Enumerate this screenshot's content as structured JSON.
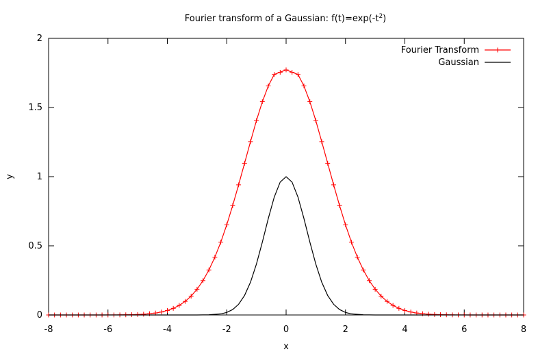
{
  "chart_data": {
    "type": "line",
    "title": "Fourier transform of a Gaussian: f(t)=exp(-t²)",
    "title_base": "Fourier transform of a Gaussian: f(t)=exp(-t",
    "title_sup": "2",
    "title_tail": ")",
    "xlabel": "x",
    "ylabel": "y",
    "xlim": [
      -8,
      8
    ],
    "ylim": [
      0,
      2
    ],
    "xticks": [
      -8,
      -6,
      -4,
      -2,
      0,
      2,
      4,
      6,
      8
    ],
    "xtick_labels": [
      "-8",
      "-6",
      "-4",
      "-2",
      "0",
      "2",
      "4",
      "6",
      "8"
    ],
    "yticks": [
      0,
      0.5,
      1,
      1.5,
      2
    ],
    "ytick_labels": [
      "0",
      "0.5",
      "1",
      "1.5",
      "2"
    ],
    "grid": false,
    "legend_position": "top-right",
    "series": [
      {
        "name": "Fourier Transform",
        "color": "#ff0000",
        "marker": "plus",
        "x": [
          -8.0,
          -7.8,
          -7.6,
          -7.4,
          -7.2,
          -7.0,
          -6.8,
          -6.6,
          -6.4,
          -6.2,
          -6.0,
          -5.8,
          -5.6,
          -5.4,
          -5.2,
          -5.0,
          -4.8,
          -4.6,
          -4.4,
          -4.2,
          -4.0,
          -3.8,
          -3.6,
          -3.4,
          -3.2,
          -3.0,
          -2.8,
          -2.6,
          -2.4,
          -2.2,
          -2.0,
          -1.8,
          -1.6,
          -1.4,
          -1.2,
          -1.0,
          -0.8,
          -0.6,
          -0.4,
          -0.2,
          0.0,
          0.2,
          0.4,
          0.6,
          0.8,
          1.0,
          1.2,
          1.4,
          1.6,
          1.8,
          2.0,
          2.2,
          2.4,
          2.6,
          2.8,
          3.0,
          3.2,
          3.4,
          3.6,
          3.8,
          4.0,
          4.2,
          4.4,
          4.6,
          4.8,
          5.0,
          5.2,
          5.4,
          5.6,
          5.8,
          6.0,
          6.2,
          6.4,
          6.6,
          6.8,
          7.0,
          7.2,
          7.4,
          7.6,
          7.8,
          8.0
        ],
        "y": [
          0.0,
          0.0,
          0.0,
          0.0,
          0.0,
          0.0,
          0.0,
          0.0,
          0.0,
          0.0001,
          0.0002,
          0.0004,
          0.0007,
          0.0012,
          0.002,
          0.0034,
          0.0056,
          0.009,
          0.014,
          0.0214,
          0.0325,
          0.0479,
          0.0693,
          0.0982,
          0.1364,
          0.1861,
          0.2485,
          0.3255,
          0.418,
          0.5263,
          0.652,
          0.791,
          0.941,
          1.097,
          1.253,
          1.405,
          1.542,
          1.656,
          1.739,
          1.755,
          1.772,
          1.755,
          1.739,
          1.656,
          1.542,
          1.405,
          1.253,
          1.097,
          0.941,
          0.791,
          0.652,
          0.5263,
          0.418,
          0.3255,
          0.2485,
          0.1861,
          0.1364,
          0.0982,
          0.0693,
          0.0479,
          0.0325,
          0.0214,
          0.014,
          0.009,
          0.0056,
          0.0034,
          0.002,
          0.0012,
          0.0007,
          0.0004,
          0.0002,
          0.0001,
          0.0,
          0.0,
          0.0,
          0.0,
          0.0,
          0.0,
          0.0,
          0.0,
          0.0
        ]
      },
      {
        "name": "Gaussian",
        "color": "#000000",
        "marker": "none",
        "x": [
          -8.0,
          -4.0,
          -3.0,
          -2.6,
          -2.2,
          -2.0,
          -1.8,
          -1.6,
          -1.4,
          -1.2,
          -1.0,
          -0.8,
          -0.6,
          -0.4,
          -0.2,
          0.0,
          0.2,
          0.4,
          0.6,
          0.8,
          1.0,
          1.2,
          1.4,
          1.6,
          1.8,
          2.0,
          2.2,
          2.6,
          3.0,
          4.0,
          8.0
        ],
        "y": [
          0.0,
          0.0,
          0.0001,
          0.0012,
          0.0079,
          0.0183,
          0.0392,
          0.0773,
          0.1409,
          0.2369,
          0.3679,
          0.5273,
          0.6977,
          0.8521,
          0.9608,
          1.0,
          0.9608,
          0.8521,
          0.6977,
          0.5273,
          0.3679,
          0.2369,
          0.1409,
          0.0773,
          0.0392,
          0.0183,
          0.0079,
          0.0012,
          0.0001,
          0.0,
          0.0
        ]
      }
    ]
  }
}
